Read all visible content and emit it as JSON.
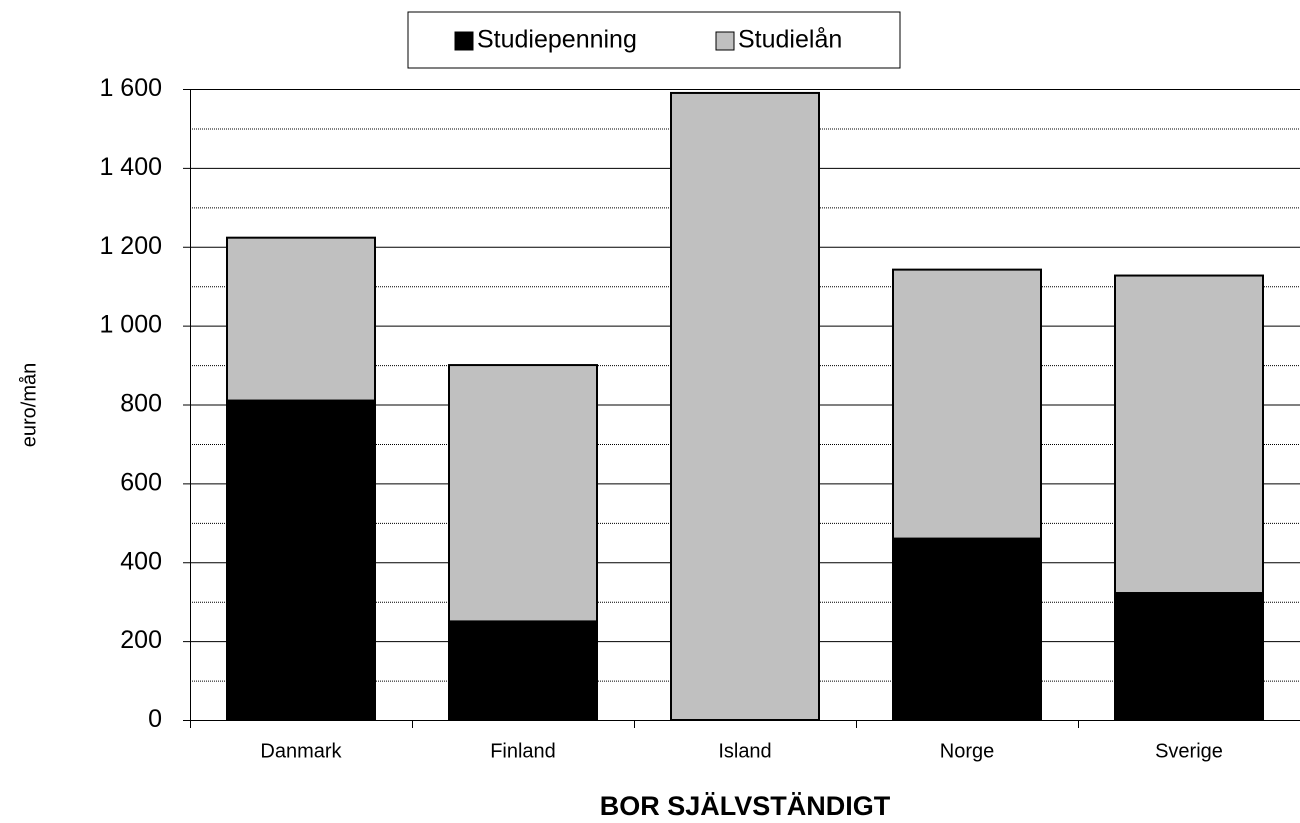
{
  "chart_data": {
    "type": "stacked_bar",
    "categories": [
      "Danmark",
      "Finland",
      "Island",
      "Norge",
      "Sverige"
    ],
    "series": [
      {
        "name": "Studiepenning",
        "color": "#000000",
        "values": [
          810,
          250,
          0,
          460,
          322
        ]
      },
      {
        "name": "Studielån",
        "color": "#c0c0c0",
        "values": [
          413,
          650,
          1590,
          682,
          805
        ]
      }
    ],
    "ylabel": "euro/mån",
    "xlabel": "BOR SJÄLVSTÄNDIGT",
    "ylim": [
      0,
      1600
    ],
    "yticks": [
      0,
      200,
      400,
      600,
      800,
      {
        "value": 1000,
        "label": "1 000"
      },
      {
        "value": 1200,
        "label": "1 200"
      },
      {
        "value": 1400,
        "label": "1 400"
      },
      {
        "value": 1600,
        "label": "1 600"
      }
    ],
    "minor_yticks": [
      100,
      300,
      500,
      700,
      900,
      1100,
      1300,
      1500
    ],
    "grid": true,
    "legend": "top"
  }
}
